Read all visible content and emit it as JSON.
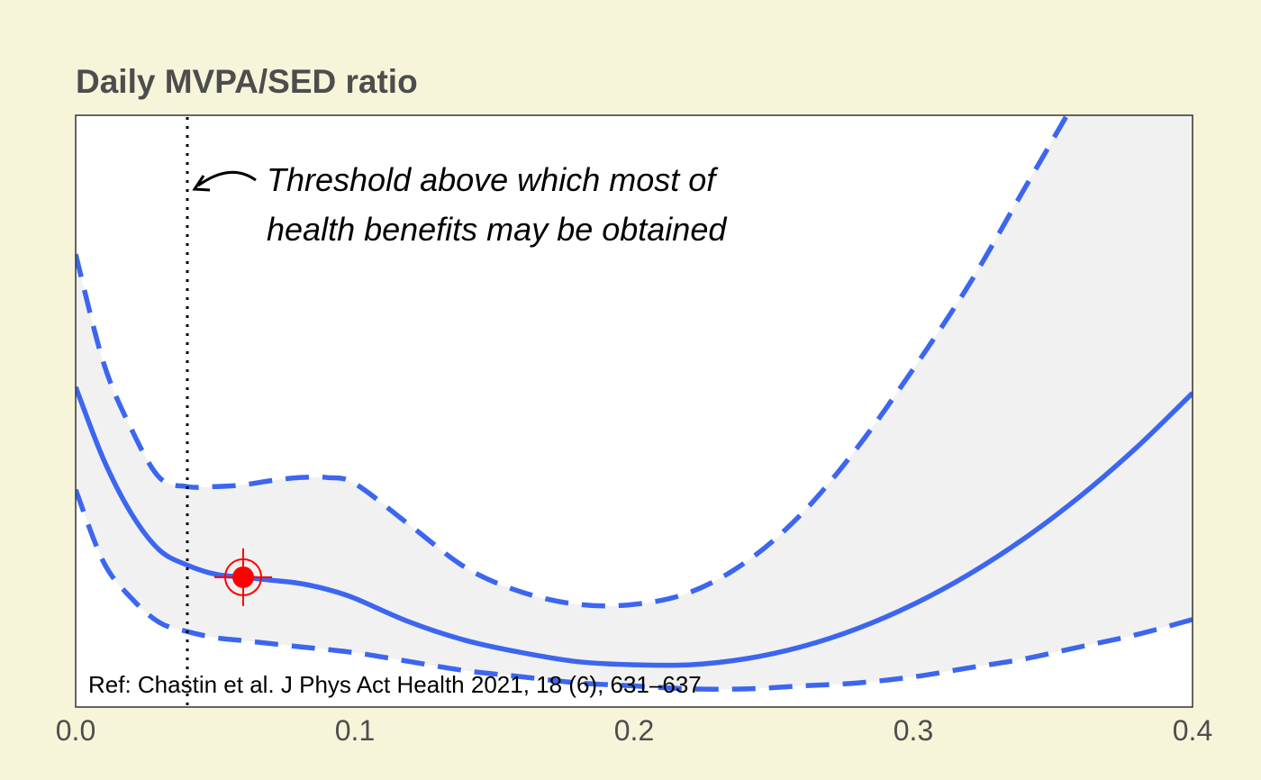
{
  "chart_data": {
    "type": "line",
    "title": "Daily MVPA/SED ratio",
    "xlabel": "",
    "ylabel": "",
    "xlim": [
      0.0,
      0.4
    ],
    "x_ticks": [
      0.0,
      0.1,
      0.2,
      0.3,
      0.4
    ],
    "x_tick_labels": [
      "0.0",
      "0.1",
      "0.2",
      "0.3",
      "0.4"
    ],
    "y_ticks_shown": false,
    "grid": false,
    "series": [
      {
        "role": "estimate",
        "style": "solid",
        "color": "#3c66f0",
        "x": [
          0.0,
          0.01,
          0.02,
          0.03,
          0.04,
          0.05,
          0.06,
          0.07,
          0.08,
          0.09,
          0.1,
          0.12,
          0.14,
          0.16,
          0.18,
          0.2,
          0.22,
          0.24,
          0.26,
          0.28,
          0.3,
          0.32,
          0.34,
          0.36,
          0.38,
          0.4
        ],
        "y": [
          1.03,
          0.91,
          0.82,
          0.76,
          0.735,
          0.72,
          0.715,
          0.71,
          0.705,
          0.695,
          0.68,
          0.64,
          0.61,
          0.59,
          0.575,
          0.57,
          0.57,
          0.58,
          0.6,
          0.63,
          0.67,
          0.72,
          0.78,
          0.85,
          0.93,
          1.02
        ]
      },
      {
        "role": "upper bound",
        "style": "dashed",
        "color": "#3c66f0",
        "x": [
          0.0,
          0.01,
          0.02,
          0.03,
          0.04,
          0.05,
          0.06,
          0.07,
          0.08,
          0.09,
          0.1,
          0.12,
          0.14,
          0.16,
          0.18,
          0.2,
          0.22,
          0.24,
          0.26,
          0.28,
          0.3,
          0.32,
          0.34,
          0.36
        ],
        "y": [
          1.25,
          1.07,
          0.96,
          0.88,
          0.865,
          0.865,
          0.868,
          0.875,
          0.88,
          0.88,
          0.87,
          0.8,
          0.73,
          0.69,
          0.67,
          0.67,
          0.69,
          0.74,
          0.82,
          0.93,
          1.06,
          1.2,
          1.36,
          1.52
        ]
      },
      {
        "role": "lower bound",
        "style": "dashed",
        "color": "#3c66f0",
        "x": [
          0.0,
          0.01,
          0.02,
          0.03,
          0.04,
          0.05,
          0.06,
          0.08,
          0.1,
          0.12,
          0.14,
          0.16,
          0.18,
          0.2,
          0.22,
          0.24,
          0.26,
          0.28,
          0.3,
          0.32,
          0.34,
          0.36,
          0.38,
          0.4
        ],
        "y": [
          0.86,
          0.74,
          0.68,
          0.64,
          0.625,
          0.615,
          0.61,
          0.6,
          0.59,
          0.575,
          0.56,
          0.55,
          0.54,
          0.535,
          0.53,
          0.53,
          0.535,
          0.54,
          0.55,
          0.565,
          0.58,
          0.6,
          0.62,
          0.645
        ]
      }
    ],
    "threshold_x": 0.04,
    "marker": {
      "x": 0.06,
      "y": 0.715,
      "color": "#ff0000"
    },
    "annotation": {
      "line1": "Threshold above which most of",
      "line2": "health benefits may be obtained"
    },
    "reference": "Ref: Chastin et al. J Phys Act Health 2021, 18 (6), 631–637",
    "colors": {
      "background": "#f6f5da",
      "panel": "#ffffff",
      "band": "#f1f1f1",
      "line": "#3c66f0",
      "marker": "#ff0000"
    }
  }
}
